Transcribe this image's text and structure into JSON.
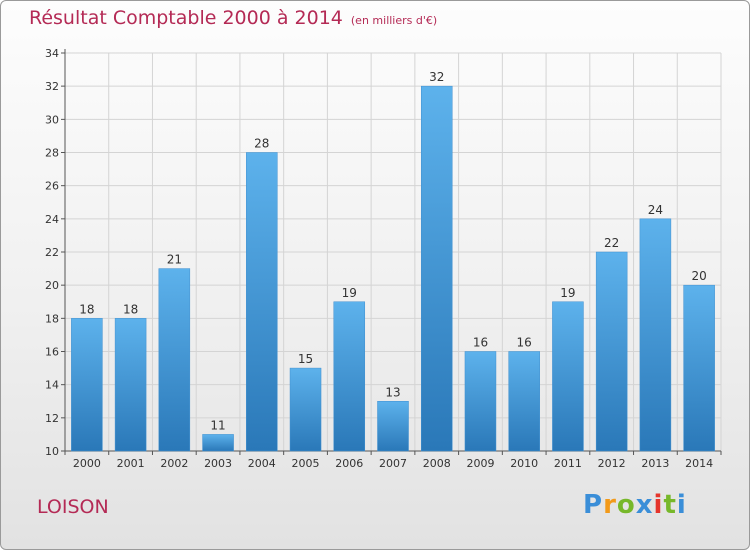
{
  "title": "Résultat Comptable 2000 à 2014",
  "unit_note": "(en milliers d'€)",
  "commune": "LOISON",
  "logo": {
    "text": "Proxiti",
    "letters": [
      {
        "ch": "P",
        "color": "#3a8ed8"
      },
      {
        "ch": "r",
        "color": "#f29a1a"
      },
      {
        "ch": "o",
        "color": "#77b82a"
      },
      {
        "ch": "x",
        "color": "#3a8ed8"
      },
      {
        "ch": "i",
        "color": "#e5352c"
      },
      {
        "ch": "t",
        "color": "#77b82a"
      },
      {
        "ch": "i",
        "color": "#3a8ed8"
      }
    ]
  },
  "chart_data": {
    "type": "bar",
    "title": "Résultat Comptable 2000 à 2014",
    "subtitle": "(en milliers d'€)",
    "categories": [
      "2000",
      "2001",
      "2002",
      "2003",
      "2004",
      "2005",
      "2006",
      "2007",
      "2008",
      "2009",
      "2010",
      "2011",
      "2012",
      "2013",
      "2014"
    ],
    "values": [
      18,
      18,
      21,
      11,
      28,
      15,
      19,
      13,
      32,
      16,
      16,
      19,
      22,
      24,
      20
    ],
    "ylim": [
      10,
      34
    ],
    "yticks": [
      10,
      12,
      14,
      16,
      18,
      20,
      22,
      24,
      26,
      28,
      30,
      32,
      34
    ],
    "grid": true,
    "data_labels": true,
    "colors": {
      "bar_top": "#5db2ec",
      "bar_bottom": "#2a78b8",
      "axis_text": "#333333",
      "grid": "#d4d4d4"
    }
  }
}
